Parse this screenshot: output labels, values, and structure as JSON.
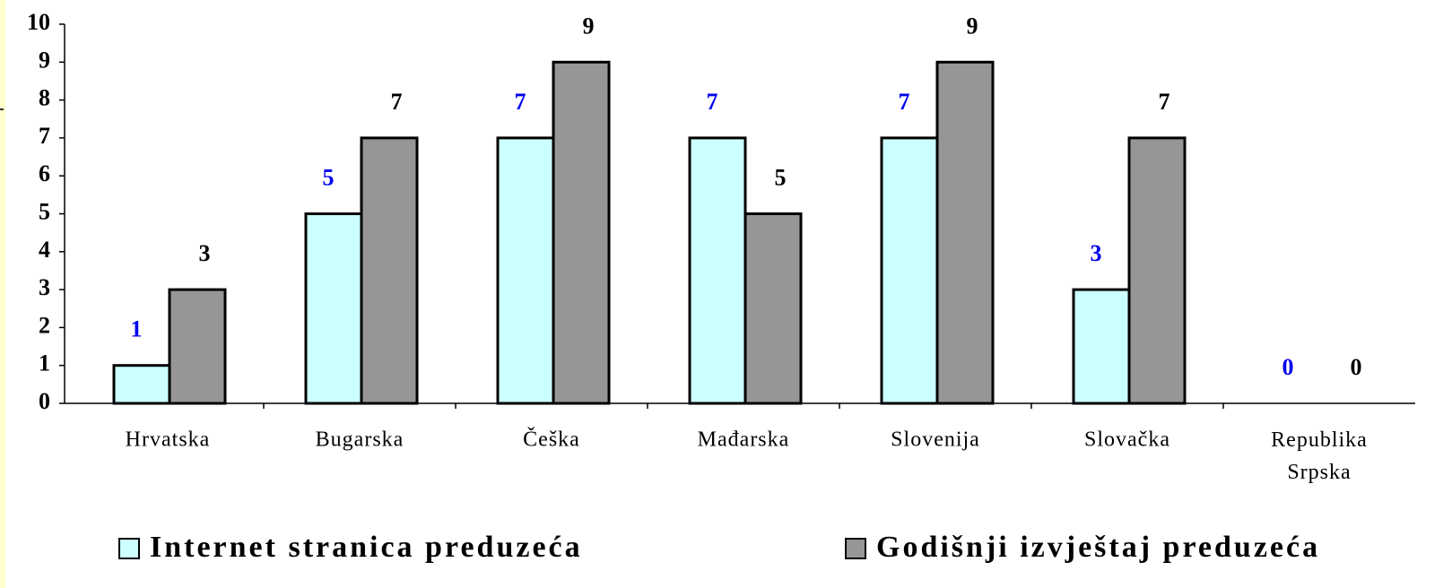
{
  "chart_data": {
    "type": "bar",
    "categories": [
      "Hrvatska",
      "Bugarska",
      "Češka",
      "Mađarska",
      "Slovenija",
      "Slovačka",
      "Republika Srpska"
    ],
    "series": [
      {
        "name": "Internet stranica preduzeća",
        "color": "#ccffff",
        "label_color": "#0000ee",
        "values": [
          1,
          5,
          7,
          7,
          7,
          3,
          0
        ]
      },
      {
        "name": "Godišnji izvještaj preduzeća",
        "color": "#969696",
        "label_color": "#000000",
        "values": [
          3,
          7,
          9,
          5,
          9,
          7,
          0
        ]
      }
    ],
    "ylim": [
      0,
      10
    ],
    "yticks": [
      0,
      1,
      2,
      3,
      4,
      5,
      6,
      7,
      8,
      9,
      10
    ],
    "grid": false,
    "legend": "bottom"
  }
}
